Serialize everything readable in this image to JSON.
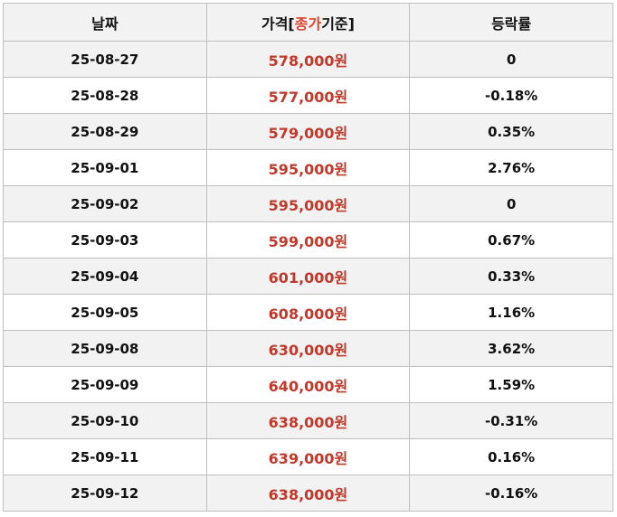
{
  "table": {
    "header": [
      "날짜",
      [
        "가격[",
        "종가",
        "기준]"
      ],
      "등락률"
    ],
    "rows": [
      [
        "25-08-27",
        "578,000원",
        "0"
      ],
      [
        "25-08-28",
        "577,000원",
        "-0.18%"
      ],
      [
        "25-08-29",
        "579,000원",
        "0.35%"
      ],
      [
        "25-09-01",
        "595,000원",
        "2.76%"
      ],
      [
        "25-09-02",
        "595,000원",
        "0"
      ],
      [
        "25-09-03",
        "599,000원",
        "0.67%"
      ],
      [
        "25-09-04",
        "601,000원",
        "0.33%"
      ],
      [
        "25-09-05",
        "608,000원",
        "1.16%"
      ],
      [
        "25-09-08",
        "630,000원",
        "3.62%"
      ],
      [
        "25-09-09",
        "640,000원",
        "1.59%"
      ],
      [
        "25-09-10",
        "638,000원",
        "-0.31%"
      ],
      [
        "25-09-11",
        "639,000원",
        "0.16%"
      ],
      [
        "25-09-12",
        "638,000원",
        "-0.16%"
      ]
    ]
  }
}
